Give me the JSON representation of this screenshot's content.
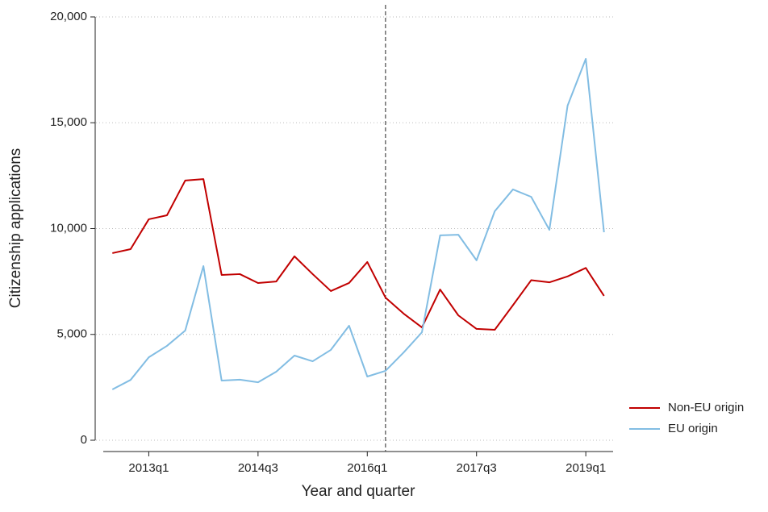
{
  "chart_data": {
    "type": "line",
    "y_label": "Citizenship applications",
    "x_label": "Year and quarter",
    "x": [
      210,
      211,
      212,
      213,
      214,
      215,
      216,
      217,
      218,
      219,
      220,
      221,
      222,
      223,
      224,
      225,
      226,
      227,
      228,
      229,
      230,
      231,
      232,
      233,
      234,
      235,
      236,
      237
    ],
    "series": [
      {
        "name": "Non-EU origin",
        "color": "#c10000",
        "values": [
          8840,
          9030,
          10440,
          10630,
          12270,
          12340,
          7810,
          7850,
          7430,
          7500,
          8690,
          7850,
          7050,
          7430,
          8420,
          6740,
          5980,
          5330,
          7120,
          5900,
          5260,
          5220,
          6380,
          7560,
          7460,
          7740,
          8140,
          6820
        ]
      },
      {
        "name": "EU origin",
        "color": "#82bde3",
        "values": [
          2400,
          2850,
          3920,
          4460,
          5180,
          8230,
          2820,
          2860,
          2740,
          3240,
          4000,
          3730,
          4270,
          5410,
          3010,
          3280,
          4150,
          5100,
          9680,
          9710,
          8500,
          10820,
          11850,
          11500,
          9940,
          15810,
          18020,
          9830
        ]
      }
    ],
    "xlim": [
      209.5,
      237.5
    ],
    "xticks": [
      {
        "value": 212,
        "label": "2013q1"
      },
      {
        "value": 218,
        "label": "2014q3"
      },
      {
        "value": 224,
        "label": "2016q1"
      },
      {
        "value": 230,
        "label": "2017q3"
      },
      {
        "value": 236,
        "label": "2019q1"
      }
    ],
    "ylim": [
      0,
      20000
    ],
    "yticks": [
      0,
      {
        "value": 5000,
        "label": "5,000"
      },
      {
        "value": 10000,
        "label": "10,000"
      },
      {
        "value": 15000,
        "label": "15,000"
      },
      {
        "value": 20000,
        "label": "20,000"
      }
    ],
    "vline": 225,
    "grid": true,
    "legend": "right"
  }
}
